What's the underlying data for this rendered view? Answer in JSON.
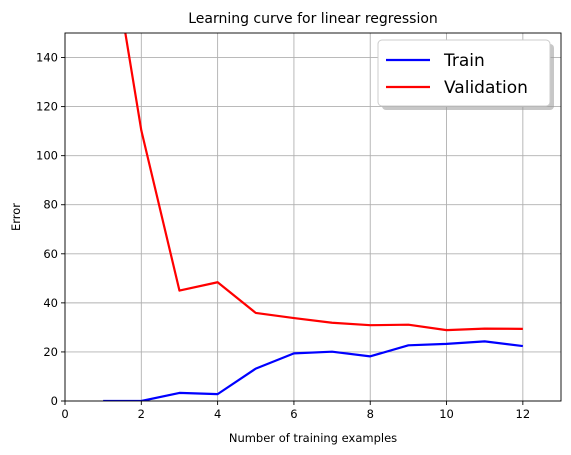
{
  "chart_data": {
    "type": "line",
    "title": "Learning curve for linear regression",
    "xlabel": "Number of training examples",
    "ylabel": "Error",
    "xlim": [
      0,
      13
    ],
    "ylim": [
      0,
      150
    ],
    "xticks": [
      0,
      2,
      4,
      6,
      8,
      10,
      12
    ],
    "yticks": [
      0,
      20,
      40,
      60,
      80,
      100,
      120,
      140
    ],
    "grid": true,
    "legend_position": "top-right",
    "series": [
      {
        "name": "Train",
        "color": "#0000ff",
        "x": [
          1,
          2,
          3,
          4,
          5,
          6,
          7,
          8,
          9,
          10,
          11,
          12
        ],
        "y": [
          0.0,
          0.0,
          3.3,
          2.8,
          13.2,
          19.4,
          20.1,
          18.2,
          22.7,
          23.3,
          24.3,
          22.4
        ]
      },
      {
        "name": "Validation",
        "color": "#ff0000",
        "x": [
          1,
          2,
          3,
          4,
          5,
          6,
          7,
          8,
          9,
          10,
          11,
          12
        ],
        "y": [
          205.1,
          110.3,
          45.0,
          48.4,
          35.9,
          33.8,
          31.9,
          30.9,
          31.1,
          28.9,
          29.5,
          29.4
        ]
      }
    ]
  }
}
